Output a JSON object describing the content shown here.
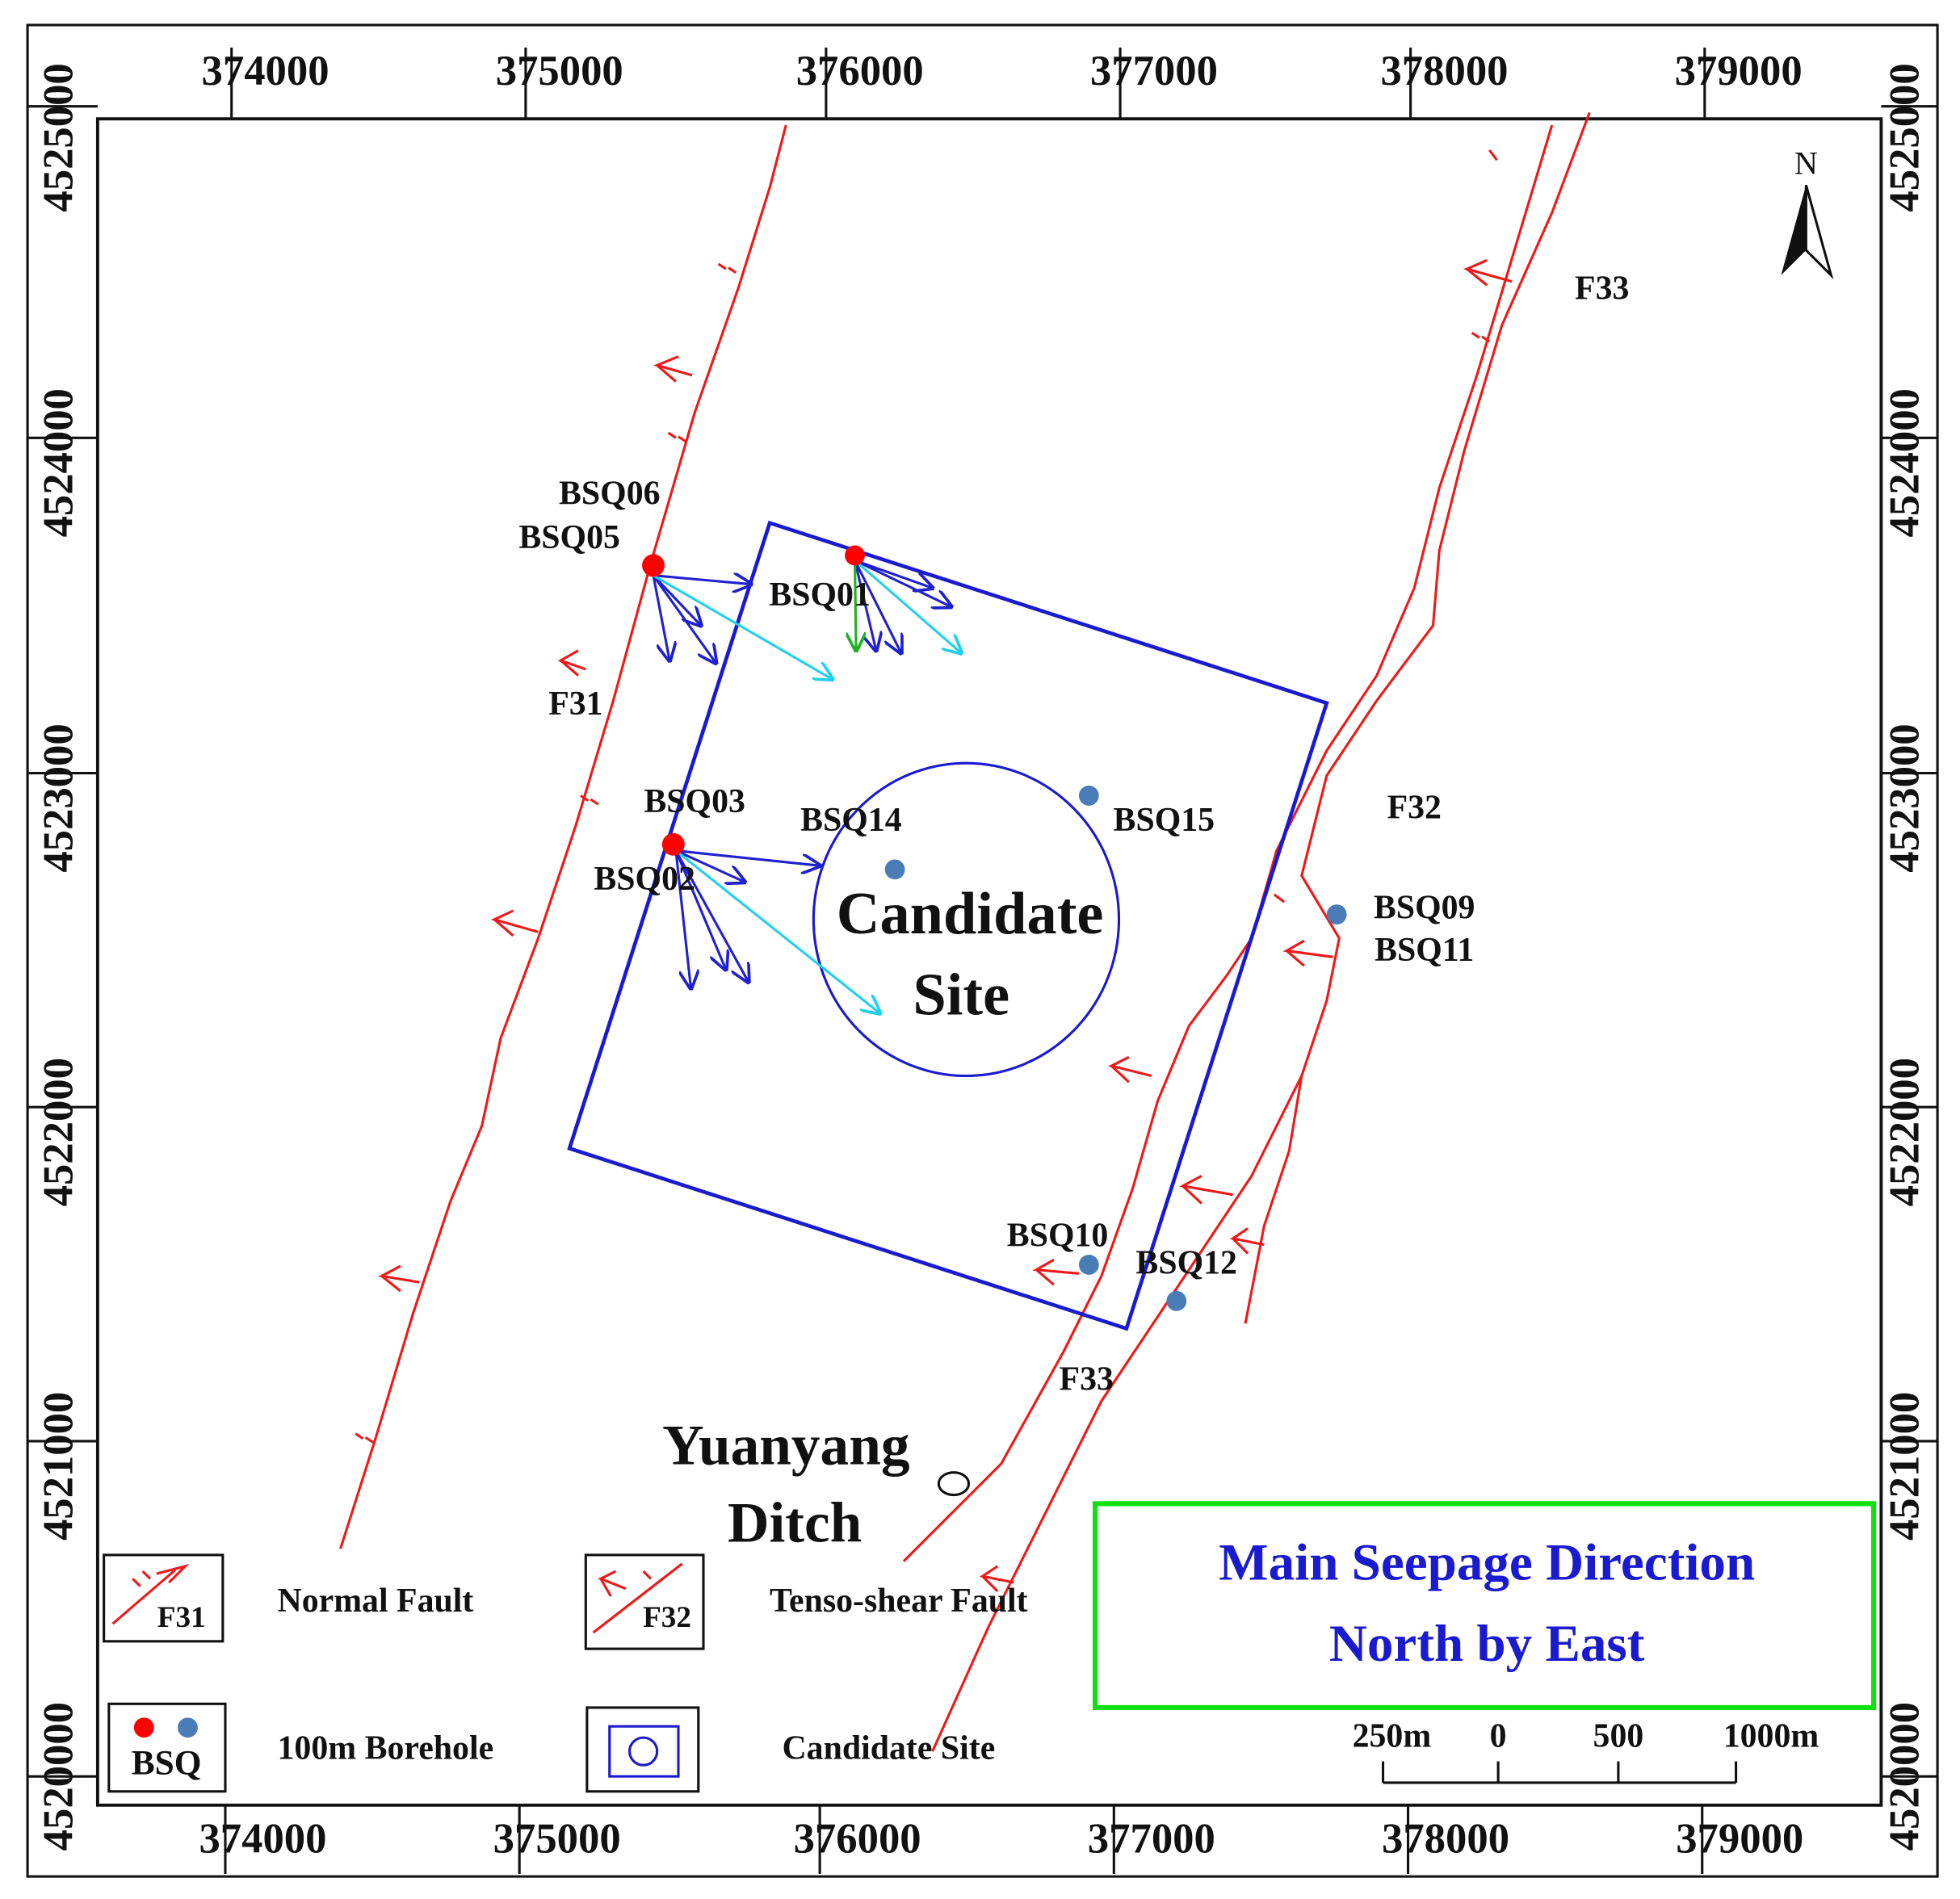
{
  "map": {
    "coordinates": {
      "top": [
        "374000",
        "375000",
        "376000",
        "377000",
        "378000",
        "379000"
      ],
      "bottom": [
        "374000",
        "375000",
        "376000",
        "377000",
        "378000",
        "379000"
      ],
      "left": [
        "4525000",
        "4524000",
        "4523000",
        "4522000",
        "4521000",
        "4520000"
      ],
      "right": [
        "4525000",
        "4524000",
        "4523000",
        "4522000",
        "4521000",
        "4520000"
      ]
    },
    "north": "N",
    "boreholes": [
      "BSQ06",
      "BSQ05",
      "BSQ01",
      "BSQ03",
      "BSQ14",
      "BSQ15",
      "BSQ02",
      "BSQ09",
      "BSQ11",
      "BSQ10",
      "BSQ12"
    ],
    "faults": [
      "F31",
      "F32",
      "F33",
      "F33"
    ],
    "site": [
      "Candidate",
      "Site"
    ],
    "place": [
      "Yuanyang",
      "Ditch"
    ],
    "title": [
      "Main Seepage Direction",
      "North by East"
    ],
    "legend": {
      "normal_fault": {
        "symbol": "F31",
        "label": "Normal Fault"
      },
      "tenso_shear_fault": {
        "symbol": "F32",
        "label": "Tenso-shear Fault"
      },
      "borehole": {
        "symbol": "BSQ",
        "label": "100m Borehole"
      },
      "candidate_site": {
        "label": "Candidate Site"
      }
    },
    "scale": [
      "250m",
      "0",
      "500",
      "1000m"
    ]
  }
}
